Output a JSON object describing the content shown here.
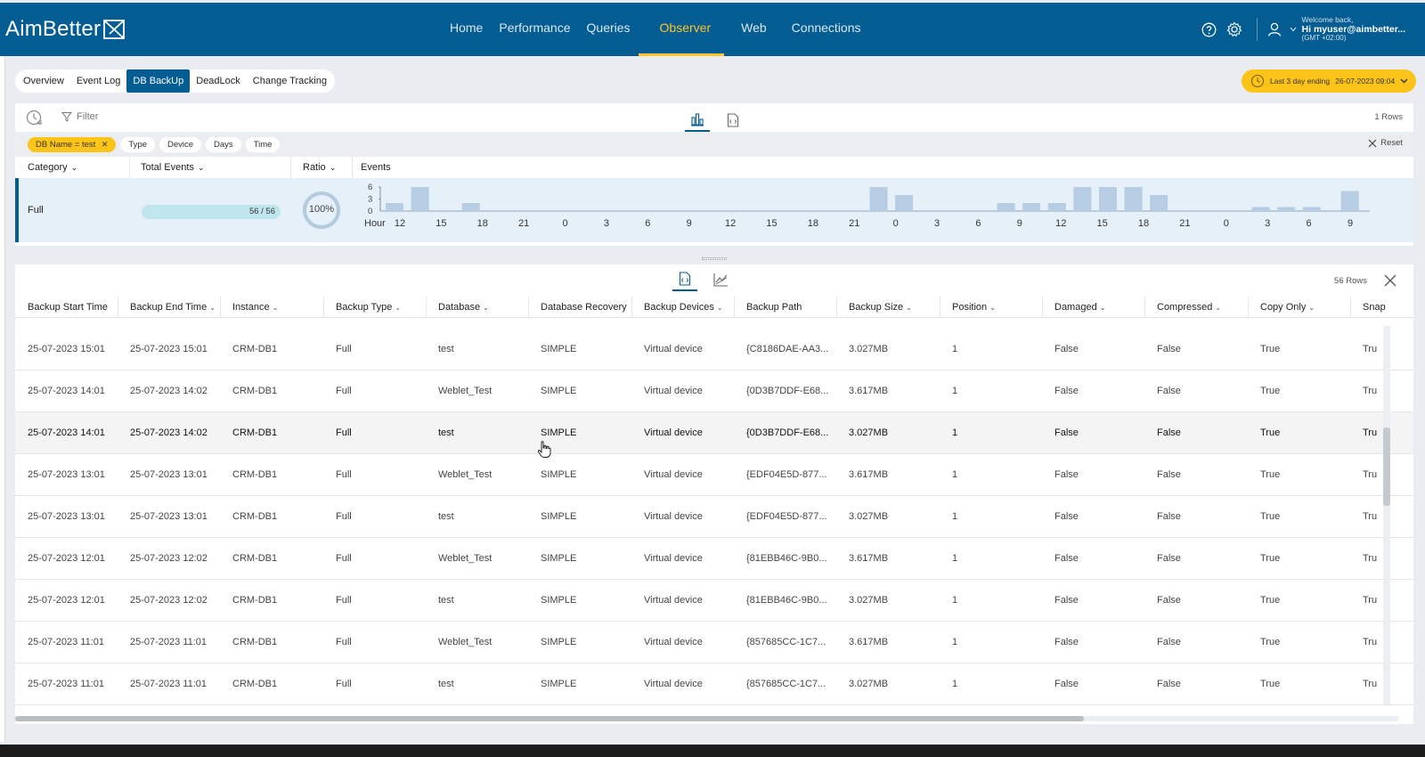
{
  "brand": {
    "name": "AimBetter"
  },
  "nav": [
    {
      "label": "Home",
      "active": false
    },
    {
      "label": "Performance",
      "active": false
    },
    {
      "label": "Queries",
      "active": false
    },
    {
      "label": "Observer",
      "active": true
    },
    {
      "label": "Web",
      "active": false
    },
    {
      "label": "Connections",
      "active": false
    }
  ],
  "user": {
    "welcome": "Welcome back,",
    "name": "Hi myuser@aimbetter...",
    "timezone": "(GMT +02:00)"
  },
  "subtabs": [
    {
      "label": "Overview",
      "active": false
    },
    {
      "label": "Event Log",
      "active": false
    },
    {
      "label": "DB BackUp",
      "active": true
    },
    {
      "label": "DeadLock",
      "active": false
    },
    {
      "label": "Change Tracking",
      "active": false
    }
  ],
  "time_range": {
    "label": "Last 3 day ending",
    "value": "26-07-2023 09:04"
  },
  "summary": {
    "filter_label": "Filter",
    "rows_label": "1 Rows",
    "reset_label": "Reset",
    "chips": [
      {
        "label": "DB Name = test",
        "active": true
      },
      {
        "label": "Type",
        "active": false
      },
      {
        "label": "Device",
        "active": false
      },
      {
        "label": "Days",
        "active": false
      },
      {
        "label": "Time",
        "active": false
      }
    ],
    "headers": {
      "category": "Category",
      "total_events": "Total Events",
      "ratio": "Ratio",
      "events": "Events"
    },
    "row": {
      "category": "Full",
      "total_label": "56 / 56",
      "total_fraction": 1.0,
      "ratio_label": "100%",
      "ratio_fraction": 1.0
    }
  },
  "chart_data": {
    "type": "bar",
    "xlabel": "Hour",
    "y_ticks": [
      6,
      3,
      0
    ],
    "ylim": [
      0,
      6
    ],
    "tick_labels": [
      "12",
      "15",
      "18",
      "21",
      "0",
      "3",
      "6",
      "9",
      "12",
      "15",
      "18",
      "21",
      "0",
      "3",
      "6",
      "9",
      "12",
      "15",
      "18",
      "21",
      "0",
      "3",
      "6",
      "9"
    ],
    "values": [
      2,
      0,
      6,
      0,
      0,
      0,
      2,
      0,
      0,
      0,
      0,
      0,
      0,
      0,
      0,
      0,
      0,
      0,
      0,
      0,
      0,
      0,
      0,
      0,
      0,
      0,
      0,
      0,
      0,
      0,
      0,
      0,
      0,
      0,
      0,
      0,
      0,
      0,
      6,
      0,
      4,
      0,
      0,
      0,
      0,
      0,
      0,
      0,
      2,
      0,
      2,
      0,
      2,
      0,
      6,
      0,
      6,
      0,
      6,
      0,
      4,
      0,
      0,
      0,
      0,
      0,
      0,
      0,
      1,
      0,
      1,
      0,
      1,
      0,
      0,
      5
    ],
    "color": "#b6cde3"
  },
  "table": {
    "rows_label": "56 Rows",
    "columns": [
      {
        "label": "Backup Start Time",
        "sort": ""
      },
      {
        "label": "Backup End Time",
        "sort": "⌄"
      },
      {
        "label": "Instance",
        "sort": "⌄"
      },
      {
        "label": "Backup Type",
        "sort": "⌄"
      },
      {
        "label": "Database",
        "sort": "⌄"
      },
      {
        "label": "Database Recovery",
        "sort": ""
      },
      {
        "label": "Backup Devices",
        "sort": "⌄"
      },
      {
        "label": "Backup Path",
        "sort": ""
      },
      {
        "label": "Backup Size",
        "sort": "⌄"
      },
      {
        "label": "Position",
        "sort": "⌄"
      },
      {
        "label": "Damaged",
        "sort": "⌄"
      },
      {
        "label": "Compressed",
        "sort": "⌄"
      },
      {
        "label": "Copy Only",
        "sort": "⌄"
      },
      {
        "label": "Snap",
        "sort": ""
      }
    ],
    "rows": [
      [
        "25-07-2023 15:01",
        "25-07-2023 15:01",
        "CRM-DB1",
        "Full",
        "test",
        "SIMPLE",
        "Virtual device",
        "{C8186DAE-AA3...",
        "3.027MB",
        "1",
        "False",
        "False",
        "True",
        "Tru"
      ],
      [
        "25-07-2023 14:01",
        "25-07-2023 14:02",
        "CRM-DB1",
        "Full",
        "Weblet_Test",
        "SIMPLE",
        "Virtual device",
        "{0D3B7DDF-E68...",
        "3.617MB",
        "1",
        "False",
        "False",
        "True",
        "Tru"
      ],
      [
        "25-07-2023 14:01",
        "25-07-2023 14:02",
        "CRM-DB1",
        "Full",
        "test",
        "SIMPLE",
        "Virtual device",
        "{0D3B7DDF-E68...",
        "3.027MB",
        "1",
        "False",
        "False",
        "True",
        "Tru"
      ],
      [
        "25-07-2023 13:01",
        "25-07-2023 13:01",
        "CRM-DB1",
        "Full",
        "Weblet_Test",
        "SIMPLE",
        "Virtual device",
        "{EDF04E5D-877...",
        "3.617MB",
        "1",
        "False",
        "False",
        "True",
        "Tru"
      ],
      [
        "25-07-2023 13:01",
        "25-07-2023 13:01",
        "CRM-DB1",
        "Full",
        "test",
        "SIMPLE",
        "Virtual device",
        "{EDF04E5D-877...",
        "3.027MB",
        "1",
        "False",
        "False",
        "True",
        "Tru"
      ],
      [
        "25-07-2023 12:01",
        "25-07-2023 12:02",
        "CRM-DB1",
        "Full",
        "Weblet_Test",
        "SIMPLE",
        "Virtual device",
        "{81EBB46C-9B0...",
        "3.617MB",
        "1",
        "False",
        "False",
        "True",
        "Tru"
      ],
      [
        "25-07-2023 12:01",
        "25-07-2023 12:02",
        "CRM-DB1",
        "Full",
        "test",
        "SIMPLE",
        "Virtual device",
        "{81EBB46C-9B0...",
        "3.027MB",
        "1",
        "False",
        "False",
        "True",
        "Tru"
      ],
      [
        "25-07-2023 11:01",
        "25-07-2023 11:01",
        "CRM-DB1",
        "Full",
        "Weblet_Test",
        "SIMPLE",
        "Virtual device",
        "{857685CC-1C7...",
        "3.617MB",
        "1",
        "False",
        "False",
        "True",
        "Tru"
      ],
      [
        "25-07-2023 11:01",
        "25-07-2023 11:01",
        "CRM-DB1",
        "Full",
        "test",
        "SIMPLE",
        "Virtual device",
        "{857685CC-1C7...",
        "3.027MB",
        "1",
        "False",
        "False",
        "True",
        "Tru"
      ]
    ],
    "hover_row": 2
  },
  "icons": {
    "help": "help-icon",
    "settings": "gear-icon",
    "user": "user-icon",
    "history": "history-icon",
    "filter": "filter-icon",
    "chart_view": "bar-chart-icon",
    "code_view": "code-file-icon",
    "line_view": "line-chart-icon",
    "close": "close-icon",
    "clock": "clock-icon"
  },
  "colors": {
    "brand": "#035d92",
    "accent": "#fcc419",
    "nav_active": "#ffc42e"
  }
}
